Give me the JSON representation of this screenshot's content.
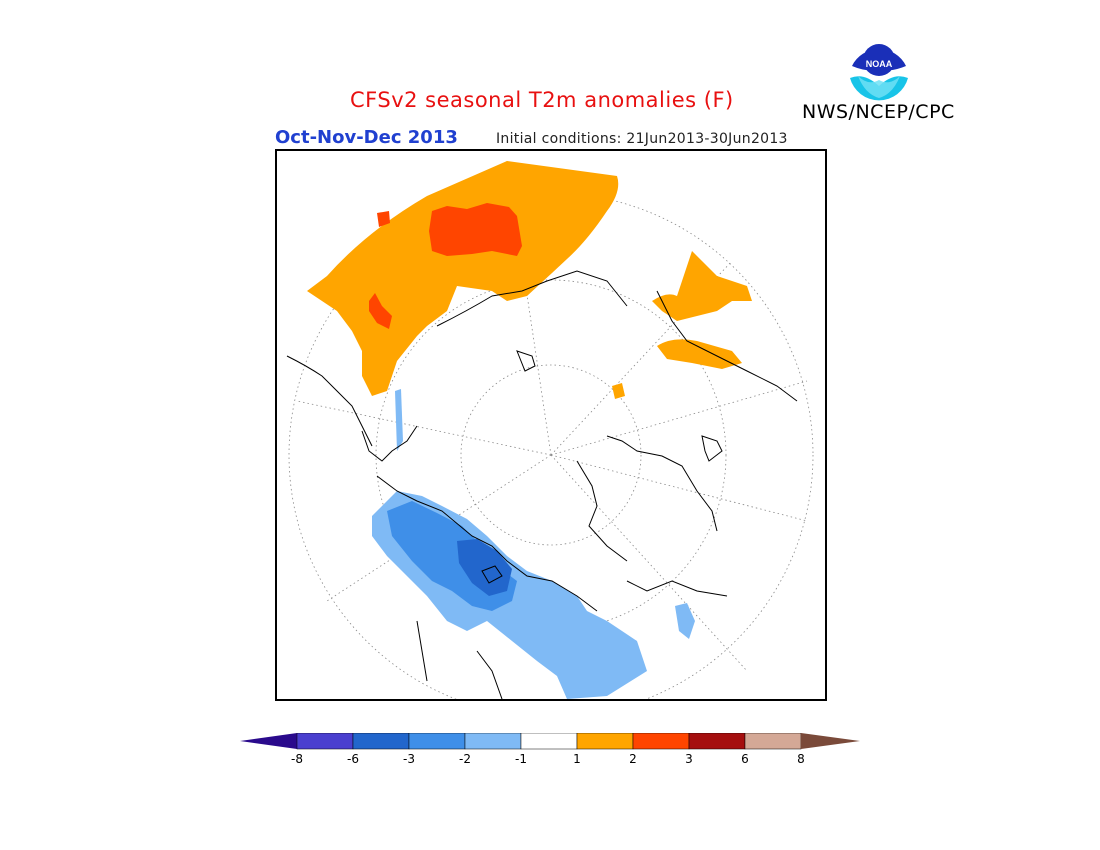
{
  "title": "CFSv2 seasonal T2m anomalies (F)",
  "season": "Oct-Nov-Dec 2013",
  "initial_conditions": "Initial conditions: 21Jun2013-30Jun2013",
  "agency": "NWS/NCEP/CPC",
  "logo_text": "NOAA",
  "colorbar": {
    "labels": [
      "-8",
      "-6",
      "-3",
      "-2",
      "-1",
      "1",
      "2",
      "3",
      "6",
      "8"
    ],
    "colors": [
      "#2a0a8c",
      "#4a3fcf",
      "#2266cc",
      "#3f8fe8",
      "#7fbaf5",
      "#ffffff",
      "#ffa500",
      "#ff4500",
      "#a50f0f",
      "#d4a896",
      "#7a4a3a"
    ]
  },
  "map": {
    "projection": "north-polar-stereographic",
    "warm_color": "#ffa500",
    "hot_color": "#ff4500",
    "cool_color": "#7fbaf5",
    "mid_cool_color": "#3f8fe8",
    "cold_color": "#2266cc"
  }
}
